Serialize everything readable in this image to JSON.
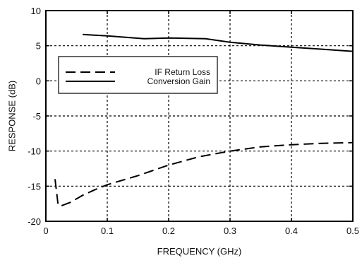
{
  "chart_data": {
    "type": "line",
    "title": "",
    "xlabel": "FREQUENCY (GHz)",
    "ylabel": "RESPONSE (dB)",
    "xlim": [
      0,
      0.5
    ],
    "ylim": [
      -20,
      10
    ],
    "x_ticks": [
      0,
      0.1,
      0.2,
      0.3,
      0.4,
      0.5
    ],
    "x_tick_labels": [
      "0",
      "0.1",
      "0.2",
      "0.3",
      "0.4",
      "0.5"
    ],
    "y_ticks": [
      -20,
      -15,
      -10,
      -5,
      0,
      5,
      10
    ],
    "y_tick_labels": [
      "-20",
      "-15",
      "-10",
      "-5",
      "0",
      "5",
      "10"
    ],
    "grid": true,
    "legend_position": "upper-left",
    "series": [
      {
        "name": "IF Return Loss",
        "style": "dashed",
        "color": "#000000",
        "x": [
          0.015,
          0.02,
          0.025,
          0.04,
          0.06,
          0.08,
          0.1,
          0.15,
          0.2,
          0.25,
          0.3,
          0.35,
          0.4,
          0.45,
          0.5
        ],
        "y": [
          -14,
          -17.7,
          -17.8,
          -17.3,
          -16.3,
          -15.5,
          -14.8,
          -13.5,
          -12.0,
          -10.8,
          -10.0,
          -9.4,
          -9.1,
          -8.9,
          -8.8
        ]
      },
      {
        "name": "Conversion Gain",
        "style": "solid",
        "color": "#000000",
        "x": [
          0.06,
          0.08,
          0.1,
          0.13,
          0.16,
          0.2,
          0.26,
          0.3,
          0.35,
          0.4,
          0.45,
          0.5
        ],
        "y": [
          6.6,
          6.5,
          6.4,
          6.2,
          6.0,
          6.1,
          6.0,
          5.5,
          5.1,
          4.8,
          4.5,
          4.2
        ]
      }
    ]
  }
}
